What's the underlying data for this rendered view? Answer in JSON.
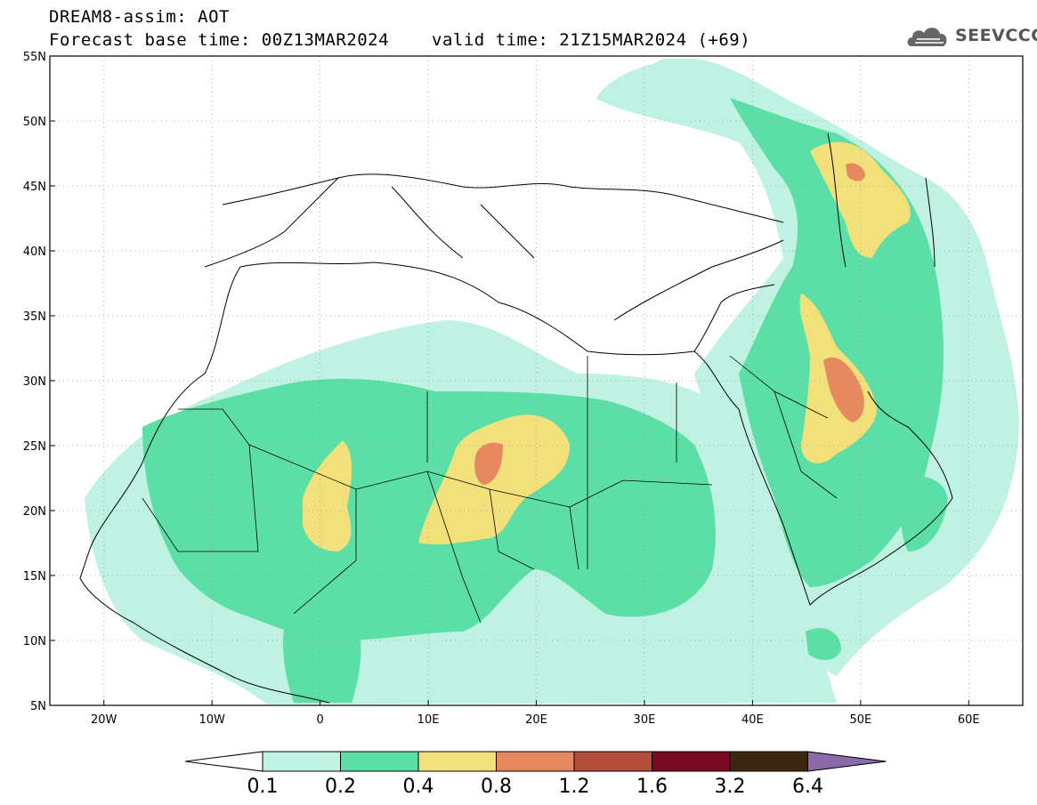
{
  "header": {
    "title_line1": "DREAM8-assim: AOT",
    "title_line2": "Forecast base time: 00Z13MAR2024",
    "valid_time": "valid time: 21Z15MAR2024 (+69)",
    "logo_text": "SEEVCCC",
    "logo_icon": "cloud-icon"
  },
  "map": {
    "lon_range": [
      -25,
      65
    ],
    "lat_range": [
      5,
      55
    ],
    "lon_ticks": [
      {
        "value": -20,
        "label": "20W"
      },
      {
        "value": -10,
        "label": "10W"
      },
      {
        "value": 0,
        "label": "0"
      },
      {
        "value": 10,
        "label": "10E"
      },
      {
        "value": 20,
        "label": "20E"
      },
      {
        "value": 30,
        "label": "30E"
      },
      {
        "value": 40,
        "label": "40E"
      },
      {
        "value": 50,
        "label": "50E"
      },
      {
        "value": 60,
        "label": "60E"
      }
    ],
    "lat_ticks": [
      {
        "value": 55,
        "label": "55N"
      },
      {
        "value": 50,
        "label": "50N"
      },
      {
        "value": 45,
        "label": "45N"
      },
      {
        "value": 40,
        "label": "40N"
      },
      {
        "value": 35,
        "label": "35N"
      },
      {
        "value": 30,
        "label": "30N"
      },
      {
        "value": 25,
        "label": "25N"
      },
      {
        "value": 20,
        "label": "20N"
      },
      {
        "value": 15,
        "label": "15N"
      },
      {
        "value": 10,
        "label": "10N"
      },
      {
        "value": 5,
        "label": "5N"
      }
    ],
    "grid": true
  },
  "colorbar": {
    "labels": [
      "0.1",
      "0.2",
      "0.4",
      "0.8",
      "1.2",
      "1.6",
      "3.2",
      "6.4"
    ],
    "colors": [
      "#ffffff",
      "#bff2e3",
      "#5cdfa6",
      "#f2e07a",
      "#e6895f",
      "#b54d3d",
      "#7a0a22",
      "#3d2710",
      "#8a6aa8"
    ]
  }
}
